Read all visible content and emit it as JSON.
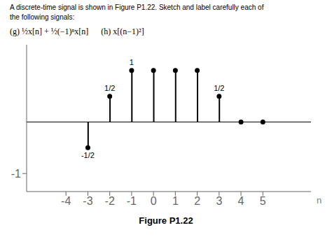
{
  "chart_data": {
    "type": "stem",
    "title": "Figure P1.22",
    "annotations": [
      "A discrete-time signal is shown in Figure P1.22. Sketch and label carefully each of",
      "the following signals:",
      "(g) ½x[n] + ½(−1)ⁿx[n]      (h) x[(n−1)²]"
    ],
    "x_label": "n",
    "x": [
      -3,
      -2,
      -1,
      0,
      1,
      2,
      3,
      4,
      5
    ],
    "values": [
      -0.5,
      0.5,
      1.0,
      1.0,
      1.0,
      1.0,
      0.5,
      0.0,
      0.0
    ],
    "value_labels": [
      "-1/2",
      "1/2",
      "1",
      null,
      null,
      null,
      "1/2",
      null,
      null
    ],
    "color": "#000000",
    "xlim": [
      -5.8,
      7.2
    ],
    "xticks": [
      -4,
      -3,
      -2,
      -1,
      0,
      1,
      2,
      3,
      4,
      5
    ],
    "ylim": [
      -1.35,
      1.5
    ],
    "yticks": [
      -1
    ],
    "grid": false
  }
}
